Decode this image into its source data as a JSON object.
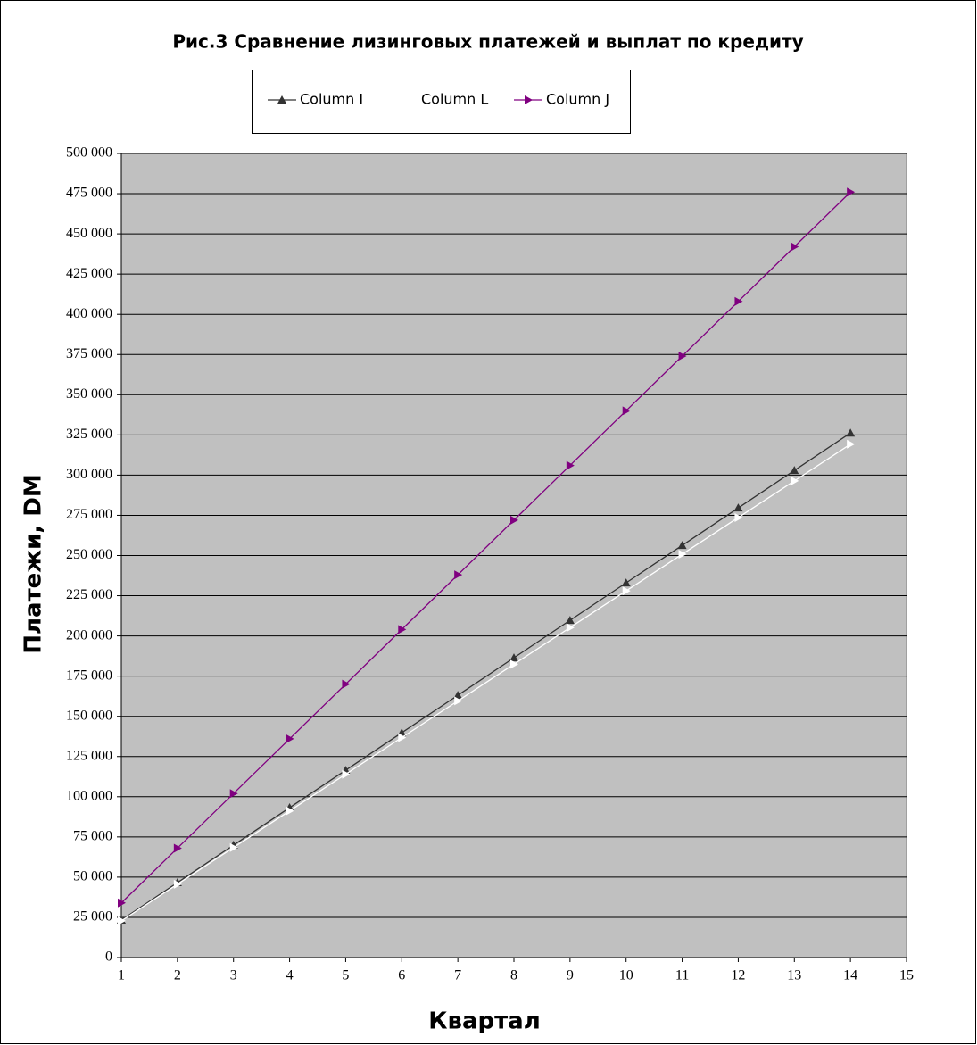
{
  "chart_data": {
    "type": "line",
    "title": "Рис.3 Сравнение лизинговых платежей и выплат по кредиту",
    "xlabel": "Квартал",
    "ylabel": "Платежи, DM",
    "x": [
      1,
      2,
      3,
      4,
      5,
      6,
      7,
      8,
      9,
      10,
      11,
      12,
      13,
      14
    ],
    "series": [
      {
        "name": "Column I",
        "color": "#333333",
        "marker": "triangle-up",
        "values": [
          23300,
          46600,
          69900,
          93200,
          116500,
          139800,
          163100,
          186400,
          209700,
          233000,
          256300,
          279600,
          302900,
          326200
        ]
      },
      {
        "name": "Column L",
        "color": "#ffffff",
        "marker": "triangle-right",
        "values": [
          22800,
          45600,
          68400,
          91200,
          114000,
          136800,
          159600,
          182400,
          205200,
          228000,
          250800,
          273600,
          296400,
          319200
        ]
      },
      {
        "name": "Column J",
        "color": "#800080",
        "marker": "triangle-right",
        "values": [
          34000,
          68000,
          102000,
          136000,
          170000,
          204000,
          238000,
          272000,
          306000,
          340000,
          374000,
          408000,
          442000,
          476000
        ]
      }
    ],
    "xlim": [
      1,
      15
    ],
    "xticks": [
      1,
      2,
      3,
      4,
      5,
      6,
      7,
      8,
      9,
      10,
      11,
      12,
      13,
      14,
      15
    ],
    "ylim": [
      0,
      500000
    ],
    "yticks": [
      0,
      {
        "value": 25000,
        "label": "25 000"
      },
      {
        "value": 50000,
        "label": "50 000"
      },
      {
        "value": 75000,
        "label": "75 000"
      },
      {
        "value": 100000,
        "label": "100 000"
      },
      {
        "value": 125000,
        "label": "125 000"
      },
      {
        "value": 150000,
        "label": "150 000"
      },
      {
        "value": 175000,
        "label": "175 000"
      },
      {
        "value": 200000,
        "label": "200 000"
      },
      {
        "value": 225000,
        "label": "225 000"
      },
      {
        "value": 250000,
        "label": "250 000"
      },
      {
        "value": 275000,
        "label": "275 000"
      },
      {
        "value": 300000,
        "label": "300 000"
      },
      {
        "value": 325000,
        "label": "325 000"
      },
      {
        "value": 350000,
        "label": "350 000"
      },
      {
        "value": 375000,
        "label": "375 000"
      },
      {
        "value": 400000,
        "label": "400 000"
      },
      {
        "value": 425000,
        "label": "425 000"
      },
      {
        "value": 450000,
        "label": "450 000"
      },
      {
        "value": 475000,
        "label": "475 000"
      },
      {
        "value": 500000,
        "label": "500 000"
      }
    ],
    "grid": true,
    "plot_background": "#c0c0c0",
    "legend_position": "top"
  }
}
